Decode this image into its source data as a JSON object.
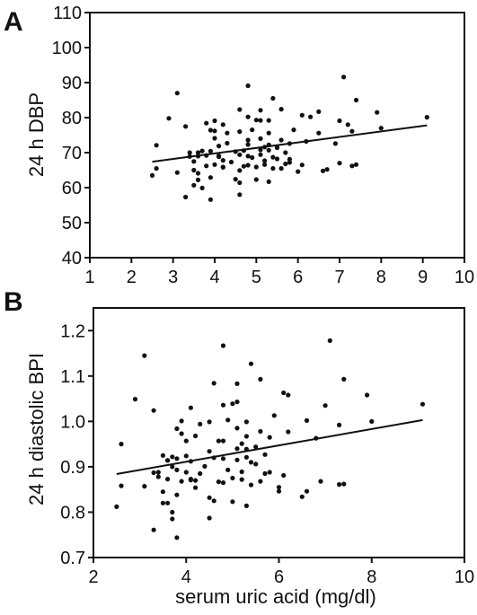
{
  "figure": {
    "panel_a_letter": "A",
    "panel_b_letter": "B",
    "panel_a_ylabel": "24 h DBP",
    "panel_b_ylabel": "24 h diastolic  BPI",
    "shared_xlabel": "serum uric acid (mg/dl)"
  },
  "chart_data": [
    {
      "type": "scatter",
      "panel": "A",
      "title": "",
      "xlabel": "",
      "ylabel": "24 h DBP",
      "xlim": [
        1,
        10
      ],
      "ylim": [
        40,
        110
      ],
      "xticks": [
        "1",
        "2",
        "3",
        "4",
        "5",
        "6",
        "7",
        "8",
        "9",
        "10"
      ],
      "yticks": [
        "40",
        "50",
        "60",
        "70",
        "80",
        "90",
        "100",
        "110"
      ],
      "grid": false,
      "regression_line": {
        "x": [
          2.5,
          9.1
        ],
        "y": [
          67.4,
          77.8
        ]
      },
      "points": [
        [
          2.5,
          63.5
        ],
        [
          2.6,
          65.5
        ],
        [
          2.6,
          72.1
        ],
        [
          2.9,
          79.8
        ],
        [
          3.1,
          87.0
        ],
        [
          3.1,
          64.3
        ],
        [
          3.3,
          57.3
        ],
        [
          3.3,
          77.5
        ],
        [
          3.4,
          68.9
        ],
        [
          3.4,
          70.0
        ],
        [
          3.5,
          67.5
        ],
        [
          3.5,
          65.0
        ],
        [
          3.5,
          60.7
        ],
        [
          3.6,
          62.2
        ],
        [
          3.6,
          69.0
        ],
        [
          3.6,
          64.1
        ],
        [
          3.6,
          70.0
        ],
        [
          3.7,
          59.9
        ],
        [
          3.7,
          70.5
        ],
        [
          3.8,
          69.2
        ],
        [
          3.8,
          66.2
        ],
        [
          3.8,
          78.4
        ],
        [
          3.9,
          56.6
        ],
        [
          3.9,
          76.4
        ],
        [
          3.9,
          70.4
        ],
        [
          3.9,
          62.9
        ],
        [
          4.0,
          74.1
        ],
        [
          4.0,
          66.6
        ],
        [
          4.0,
          76.2
        ],
        [
          4.0,
          79.1
        ],
        [
          4.1,
          69.1
        ],
        [
          4.1,
          68.8
        ],
        [
          4.1,
          71.9
        ],
        [
          4.2,
          67.8
        ],
        [
          4.2,
          65.8
        ],
        [
          4.2,
          78.0
        ],
        [
          4.2,
          65.9
        ],
        [
          4.3,
          72.7
        ],
        [
          4.3,
          75.6
        ],
        [
          4.4,
          67.3
        ],
        [
          4.5,
          70.3
        ],
        [
          4.5,
          62.4
        ],
        [
          4.6,
          64.9
        ],
        [
          4.6,
          58.0
        ],
        [
          4.6,
          76.0
        ],
        [
          4.6,
          82.3
        ],
        [
          4.6,
          69.4
        ],
        [
          4.6,
          61.4
        ],
        [
          4.7,
          70.6
        ],
        [
          4.7,
          66.1
        ],
        [
          4.8,
          89.1
        ],
        [
          4.8,
          80.2
        ],
        [
          4.8,
          69.0
        ],
        [
          4.8,
          72.3
        ],
        [
          4.8,
          66.4
        ],
        [
          4.8,
          73.6
        ],
        [
          4.9,
          68.6
        ],
        [
          4.9,
          76.5
        ],
        [
          5.0,
          65.9
        ],
        [
          5.0,
          79.3
        ],
        [
          5.0,
          62.3
        ],
        [
          5.1,
          69.4
        ],
        [
          5.1,
          70.8
        ],
        [
          5.1,
          74.0
        ],
        [
          5.1,
          82.1
        ],
        [
          5.1,
          79.2
        ],
        [
          5.2,
          66.6
        ],
        [
          5.2,
          71.6
        ],
        [
          5.2,
          67.7
        ],
        [
          5.3,
          79.2
        ],
        [
          5.3,
          72.2
        ],
        [
          5.3,
          70.7
        ],
        [
          5.3,
          75.6
        ],
        [
          5.3,
          61.7
        ],
        [
          5.4,
          65.5
        ],
        [
          5.4,
          68.7
        ],
        [
          5.4,
          85.5
        ],
        [
          5.5,
          71.4
        ],
        [
          5.5,
          68.2
        ],
        [
          5.6,
          73.6
        ],
        [
          5.6,
          82.4
        ],
        [
          5.6,
          65.5
        ],
        [
          5.7,
          70.0
        ],
        [
          5.7,
          66.8
        ],
        [
          5.8,
          68.1
        ],
        [
          5.8,
          72.6
        ],
        [
          5.8,
          67.2
        ],
        [
          5.9,
          76.5
        ],
        [
          6.0,
          64.6
        ],
        [
          6.1,
          66.5
        ],
        [
          6.1,
          80.7
        ],
        [
          6.2,
          73.2
        ],
        [
          6.3,
          80.2
        ],
        [
          6.5,
          75.6
        ],
        [
          6.5,
          81.7
        ],
        [
          6.6,
          64.8
        ],
        [
          6.7,
          65.2
        ],
        [
          6.9,
          72.6
        ],
        [
          7.0,
          79.1
        ],
        [
          7.0,
          67.0
        ],
        [
          7.1,
          91.6
        ],
        [
          7.2,
          78.0
        ],
        [
          7.3,
          76.1
        ],
        [
          7.4,
          85.0
        ],
        [
          7.3,
          66.2
        ],
        [
          7.4,
          66.6
        ],
        [
          7.9,
          81.5
        ],
        [
          8.0,
          77.0
        ],
        [
          9.1,
          80.1
        ]
      ]
    },
    {
      "type": "scatter",
      "panel": "B",
      "title": "",
      "xlabel": "serum uric acid (mg/dl)",
      "ylabel": "24 h diastolic  BPI",
      "xlim": [
        2,
        10
      ],
      "ylim": [
        0.7,
        1.25
      ],
      "xticks": [
        "2",
        "4",
        "6",
        "8",
        "10"
      ],
      "yticks": [
        "0.7",
        "0.8",
        "0.9",
        "1.0",
        "1.1",
        "1.2"
      ],
      "grid": false,
      "regression_line": {
        "x": [
          2.5,
          9.1
        ],
        "y": [
          0.884,
          1.003
        ]
      },
      "points": [
        [
          2.5,
          0.812
        ],
        [
          2.6,
          0.95
        ],
        [
          2.6,
          0.858
        ],
        [
          2.9,
          1.049
        ],
        [
          3.1,
          1.145
        ],
        [
          3.1,
          0.857
        ],
        [
          3.3,
          0.761
        ],
        [
          3.3,
          0.887
        ],
        [
          3.3,
          1.024
        ],
        [
          3.4,
          0.888
        ],
        [
          3.4,
          0.878
        ],
        [
          3.5,
          0.82
        ],
        [
          3.5,
          0.925
        ],
        [
          3.5,
          0.845
        ],
        [
          3.6,
          0.873
        ],
        [
          3.6,
          0.914
        ],
        [
          3.6,
          0.82
        ],
        [
          3.6,
          0.914
        ],
        [
          3.7,
          0.8
        ],
        [
          3.7,
          0.922
        ],
        [
          3.7,
          0.785
        ],
        [
          3.7,
          0.9
        ],
        [
          3.8,
          0.744
        ],
        [
          3.8,
          0.984
        ],
        [
          3.8,
          0.918
        ],
        [
          3.8,
          0.838
        ],
        [
          3.8,
          0.893
        ],
        [
          3.9,
          0.973
        ],
        [
          3.9,
          0.868
        ],
        [
          3.9,
          1.001
        ],
        [
          4.0,
          0.924
        ],
        [
          4.0,
          0.888
        ],
        [
          4.0,
          0.957
        ],
        [
          4.1,
          0.912
        ],
        [
          4.1,
          0.873
        ],
        [
          4.1,
          1.03
        ],
        [
          4.1,
          0.871
        ],
        [
          4.2,
          0.87
        ],
        [
          4.2,
          0.854
        ],
        [
          4.2,
          0.968
        ],
        [
          4.3,
          0.994
        ],
        [
          4.3,
          0.885
        ],
        [
          4.4,
          0.901
        ],
        [
          4.5,
          0.934
        ],
        [
          4.5,
          0.832
        ],
        [
          4.5,
          0.787
        ],
        [
          4.5,
          0.999
        ],
        [
          4.6,
          1.084
        ],
        [
          4.6,
          0.92
        ],
        [
          4.6,
          0.825
        ],
        [
          4.7,
          0.957
        ],
        [
          4.7,
          0.867
        ],
        [
          4.8,
          1.167
        ],
        [
          4.8,
          1.036
        ],
        [
          4.8,
          0.918
        ],
        [
          4.8,
          0.957
        ],
        [
          4.8,
          0.865
        ],
        [
          4.9,
          0.893
        ],
        [
          4.9,
          1.003
        ],
        [
          5.0,
          1.039
        ],
        [
          5.0,
          0.875
        ],
        [
          5.0,
          0.823
        ],
        [
          5.1,
          0.915
        ],
        [
          5.1,
          0.94
        ],
        [
          5.1,
          0.985
        ],
        [
          5.1,
          1.083
        ],
        [
          5.1,
          1.043
        ],
        [
          5.2,
          0.889
        ],
        [
          5.2,
          0.951
        ],
        [
          5.2,
          0.872
        ],
        [
          5.3,
          0.967
        ],
        [
          5.3,
          0.939
        ],
        [
          5.3,
          0.921
        ],
        [
          5.3,
          0.999
        ],
        [
          5.3,
          0.814
        ],
        [
          5.4,
          0.86
        ],
        [
          5.4,
          0.91
        ],
        [
          5.4,
          1.127
        ],
        [
          5.5,
          0.944
        ],
        [
          5.5,
          0.906
        ],
        [
          5.6,
          1.093
        ],
        [
          5.6,
          0.978
        ],
        [
          5.6,
          0.868
        ],
        [
          5.7,
          0.927
        ],
        [
          5.7,
          0.885
        ],
        [
          5.8,
          0.965
        ],
        [
          5.8,
          0.888
        ],
        [
          5.9,
          1.013
        ],
        [
          6.0,
          0.846
        ],
        [
          6.0,
          0.855
        ],
        [
          6.1,
          0.881
        ],
        [
          6.1,
          1.063
        ],
        [
          6.2,
          0.977
        ],
        [
          6.2,
          1.058
        ],
        [
          6.5,
          0.834
        ],
        [
          6.6,
          0.846
        ],
        [
          6.6,
          1.002
        ],
        [
          6.8,
          0.963
        ],
        [
          6.9,
          0.868
        ],
        [
          7.0,
          1.035
        ],
        [
          7.1,
          1.178
        ],
        [
          7.3,
          0.992
        ],
        [
          7.3,
          0.861
        ],
        [
          7.4,
          1.093
        ],
        [
          7.4,
          0.862
        ],
        [
          7.9,
          1.058
        ],
        [
          8.0,
          1.0
        ],
        [
          9.1,
          1.038
        ]
      ]
    }
  ]
}
